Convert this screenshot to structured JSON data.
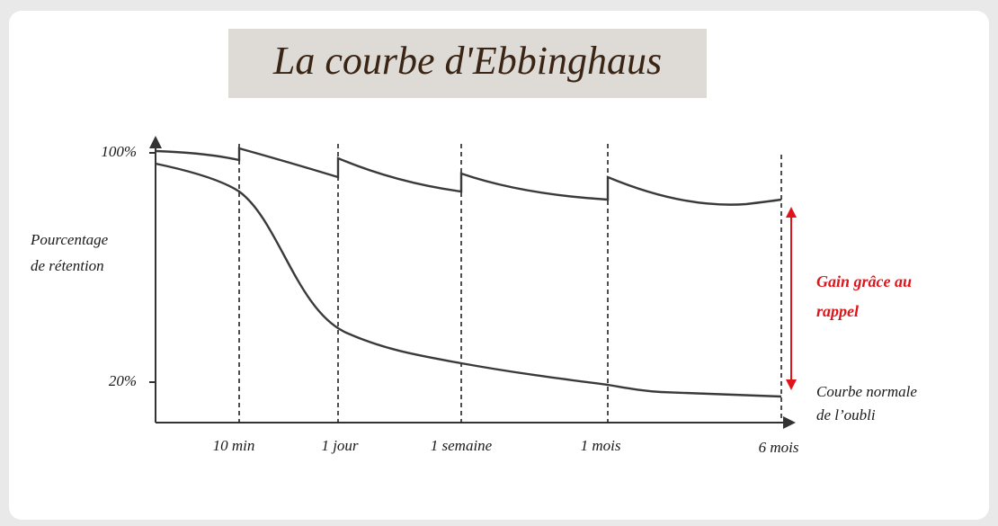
{
  "title": "La courbe d'Ebbinghaus",
  "y_axis": {
    "label": [
      "Pourcentage",
      "de rétention"
    ],
    "ticks": [
      "100%",
      "20%"
    ]
  },
  "x_axis": {
    "ticks": [
      "10 min",
      "1 jour",
      "1 semaine",
      "1 mois",
      "6 mois"
    ]
  },
  "annotations": {
    "gain": [
      "Gain grâce au",
      "rappel"
    ],
    "normal": [
      "Courbe normale",
      "de l’oubli"
    ]
  }
}
